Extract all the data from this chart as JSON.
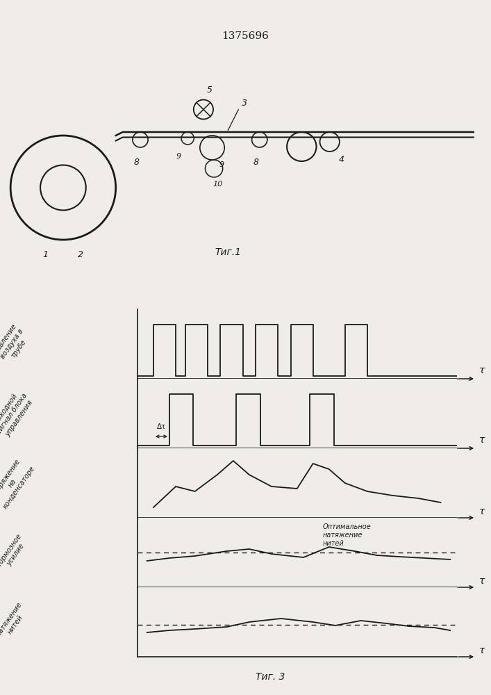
{
  "title": "1375696",
  "fig1_caption": "Τиг.1",
  "fig3_caption": "Τиг. 3",
  "bg_color": "#f0ede8",
  "line_color": "#1a1a1a",
  "label1": "Давление\nвоздуха в\nтрубе",
  "label2": "Выходной\nсигнал блока\nуправления",
  "label3": "Напряжение\nна\nконденсаторе",
  "label4": "Тормозное\nусилие",
  "label5": "Натяжение\nнитей",
  "tau_label": "τ",
  "optimal_label": "Оптимальное\nнатяжение\nнитей",
  "delta_tau": "Δτ"
}
